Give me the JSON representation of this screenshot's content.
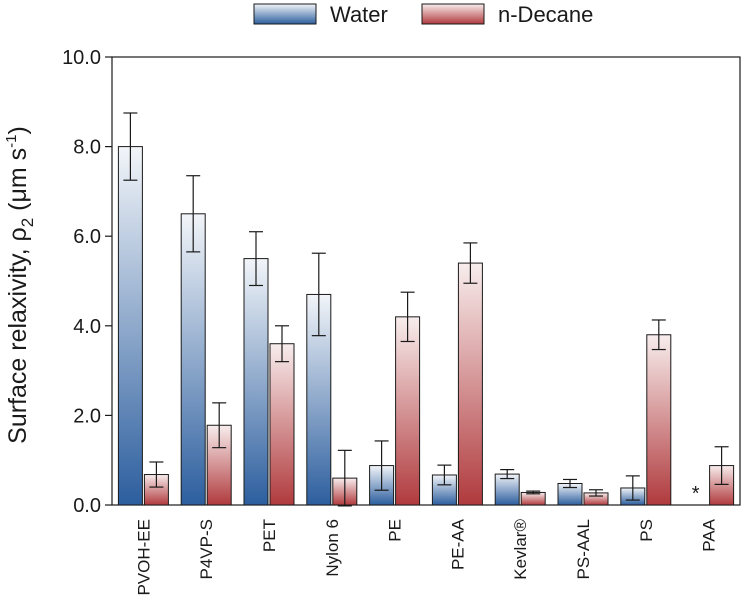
{
  "chart_data": {
    "type": "bar",
    "title": "",
    "xlabel": "",
    "ylabel": {
      "main": "Surface relaxivity, ρ",
      "subscript": "2",
      "unit_open": " (μm s",
      "unit_sup": "-1",
      "unit_close": ")"
    },
    "ylim": [
      0,
      10
    ],
    "yticks": [
      "0.0",
      "2.0",
      "4.0",
      "6.0",
      "8.0",
      "10.0"
    ],
    "categories": [
      "PVOH-EE",
      "P4VP-S",
      "PET",
      "Nylon 6",
      "PE",
      "PE-AA",
      "Kevlar®",
      "PS-AAL",
      "PS",
      "PAA"
    ],
    "series": [
      {
        "name": "Water",
        "gradient_top": "#f2f5f9",
        "gradient_bottom": "#2c5e9e",
        "values": [
          8.0,
          6.5,
          5.5,
          4.7,
          0.88,
          0.67,
          0.69,
          0.48,
          0.38,
          null
        ],
        "errors": [
          0.75,
          0.85,
          0.6,
          0.92,
          0.55,
          0.22,
          0.1,
          0.09,
          0.27,
          null
        ]
      },
      {
        "name": "n-Decane",
        "gradient_top": "#f8eded",
        "gradient_bottom": "#b03a3d",
        "values": [
          0.68,
          1.78,
          3.6,
          0.6,
          4.2,
          5.4,
          0.28,
          0.27,
          3.8,
          0.88
        ],
        "errors": [
          0.28,
          0.5,
          0.4,
          0.62,
          0.55,
          0.45,
          0.03,
          0.07,
          0.33,
          0.42
        ]
      }
    ],
    "annotations": [
      {
        "category": "PAA",
        "series": "Water",
        "text": "*"
      }
    ],
    "legend_position": "top-center"
  }
}
